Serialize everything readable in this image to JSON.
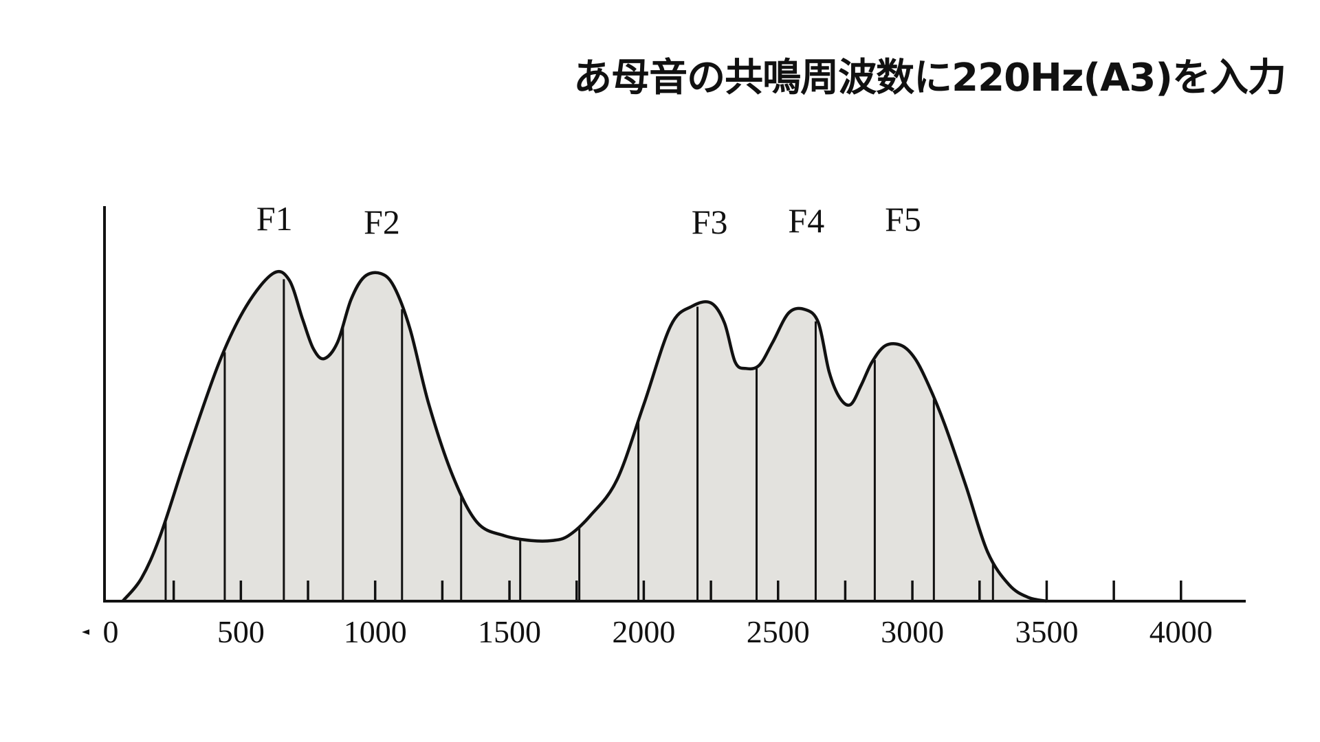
{
  "slide": {
    "title": "あ母音の共鳴周波数に220Hz(A3)を入力"
  },
  "chart_data": {
    "type": "area",
    "title": "",
    "xlabel": "",
    "ylabel": "",
    "xlim": [
      0,
      4200
    ],
    "ylim": [
      0,
      1
    ],
    "grid": false,
    "x_ticks": [
      0,
      500,
      1000,
      1500,
      2000,
      2500,
      3000,
      3500,
      4000
    ],
    "x_tick_labels": [
      "0",
      "500",
      "1000",
      "1500",
      "2000",
      "2500",
      "3000",
      "3500",
      "4000"
    ],
    "minor_ticks": [
      250,
      500,
      750,
      1000,
      1250,
      1500,
      1750,
      2000,
      2250,
      2500,
      2750,
      3000,
      3250,
      3500,
      3750,
      4000
    ],
    "envelope": {
      "x": [
        60,
        130,
        200,
        300,
        420,
        520,
        620,
        680,
        730,
        770,
        810,
        860,
        910,
        960,
        1020,
        1070,
        1130,
        1200,
        1290,
        1380,
        1480,
        1580,
        1660,
        1720,
        1800,
        1900,
        2000,
        2100,
        2180,
        2250,
        2300,
        2340,
        2380,
        2430,
        2480,
        2540,
        2600,
        2650,
        2690,
        2730,
        2770,
        2810,
        2850,
        2900,
        2960,
        3010,
        3060,
        3120,
        3200,
        3280,
        3360,
        3430,
        3500
      ],
      "y": [
        0.0,
        0.07,
        0.2,
        0.45,
        0.73,
        0.9,
        1.0,
        0.98,
        0.86,
        0.77,
        0.74,
        0.79,
        0.92,
        0.99,
        1.0,
        0.96,
        0.83,
        0.6,
        0.38,
        0.24,
        0.2,
        0.185,
        0.185,
        0.2,
        0.26,
        0.37,
        0.6,
        0.84,
        0.9,
        0.91,
        0.85,
        0.73,
        0.71,
        0.72,
        0.79,
        0.88,
        0.89,
        0.85,
        0.7,
        0.62,
        0.6,
        0.66,
        0.73,
        0.78,
        0.78,
        0.74,
        0.66,
        0.54,
        0.35,
        0.15,
        0.05,
        0.012,
        0.0
      ]
    },
    "harmonics_hz": [
      220,
      440,
      660,
      880,
      1100,
      1320,
      1540,
      1760,
      1980,
      2200,
      2420,
      2640,
      2860,
      3080,
      3300
    ],
    "formants": [
      {
        "label": "F1",
        "x": 620
      },
      {
        "label": "F2",
        "x": 1020
      },
      {
        "label": "F3",
        "x": 2240
      },
      {
        "label": "F4",
        "x": 2600
      },
      {
        "label": "F5",
        "x": 2960
      }
    ],
    "fill_color": "#e3e2de",
    "line_color": "#111111"
  }
}
